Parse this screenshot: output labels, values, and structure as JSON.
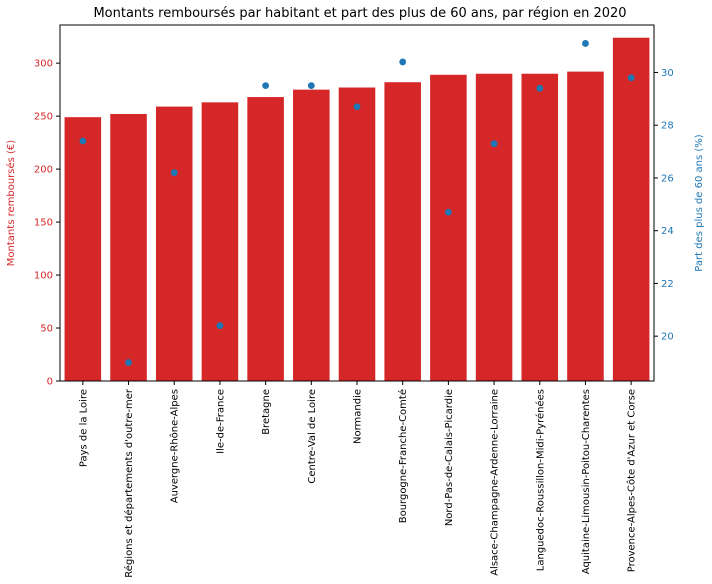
{
  "chart_data": {
    "type": "bar",
    "title": "Montants remboursés par habitant et part des plus de 60 ans, par région en 2020",
    "xlabel": "",
    "ylabel": "Montants remboursés (€)",
    "y2label": "Part des plus de 60 ans (%)",
    "ylim": [
      0,
      336
    ],
    "y2lim": [
      18.3,
      31.8
    ],
    "yticks": [
      0,
      50,
      100,
      150,
      200,
      250,
      300
    ],
    "y2ticks": [
      20,
      22,
      24,
      26,
      28,
      30
    ],
    "grid": false,
    "categories": [
      "Pays de la Loire",
      "Régions et départements d'outre-mer",
      "Auvergne-Rhône-Alpes",
      "Ile-de-France",
      "Bretagne",
      "Centre-Val de Loire",
      "Normandie",
      "Bourgogne-Franche-Comté",
      "Nord-Pas-de-Calais-Picardie",
      "Alsace-Champagne-Ardenne-Lorraine",
      "Languedoc-Roussillon-Midi-Pyrénées",
      "Aquitaine-Limousin-Poitou-Charentes",
      "Provence-Alpes-Côte d'Azur et Corse"
    ],
    "series": [
      {
        "axis": "left",
        "type": "bar",
        "color": "#d62728",
        "values": [
          249,
          252,
          259,
          263,
          268,
          275,
          277,
          282,
          289,
          290,
          290,
          292,
          324
        ]
      },
      {
        "axis": "right",
        "type": "scatter",
        "color": "#1f77b4",
        "values": [
          27.4,
          19.0,
          26.2,
          20.4,
          29.5,
          29.5,
          28.7,
          30.4,
          24.7,
          27.3,
          29.4,
          31.1,
          29.8
        ]
      }
    ],
    "colors": {
      "left_axis": "#d62728",
      "right_axis": "#1f77b4",
      "axis_line": "#000000"
    }
  }
}
